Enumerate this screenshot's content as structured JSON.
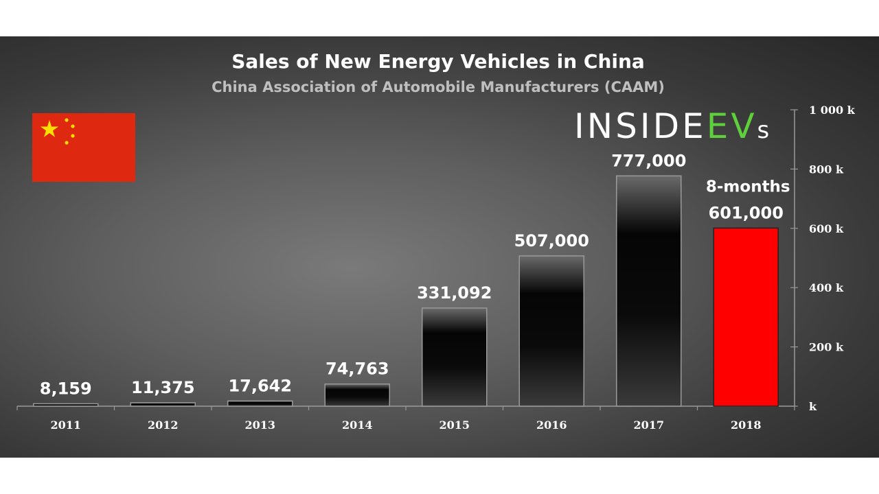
{
  "chart_data": {
    "type": "bar",
    "title": "Sales of New Energy Vehicles in China",
    "subtitle": "China Association of Automobile Manufacturers (CAAM)",
    "categories": [
      "2011",
      "2012",
      "2013",
      "2014",
      "2015",
      "2016",
      "2017",
      "2018"
    ],
    "values": [
      8159,
      11375,
      17642,
      74763,
      331092,
      507000,
      777000,
      601000
    ],
    "value_labels": [
      "8,159",
      "11,375",
      "17,642",
      "74,763",
      "331,092",
      "507,000",
      "777,000",
      "601,000"
    ],
    "highlight_index": 7,
    "highlight_note": "8-months",
    "ylim": [
      0,
      1000000
    ],
    "y_ticks": [
      0,
      200000,
      400000,
      600000,
      800000,
      1000000
    ],
    "y_tick_labels": [
      "k",
      "200 k",
      "400 k",
      "600 k",
      "800 k",
      "1 000 k"
    ],
    "y_axis_side": "right",
    "grid": false,
    "legend": "none",
    "colors": {
      "bar": "#0d0d0d",
      "highlight": "#ff0000",
      "text": "#ffffff",
      "subtitle": "#bfbfbf"
    }
  },
  "branding": {
    "logo_part1": "INSIDE",
    "logo_part2": "EV",
    "logo_part3": "s",
    "logo_colors": {
      "part1": "#ffffff",
      "part2": "#5fcf3c"
    }
  },
  "flag": {
    "country": "China",
    "icon": "china-flag-icon",
    "field": "#de2910",
    "stars": "#ffde00"
  }
}
